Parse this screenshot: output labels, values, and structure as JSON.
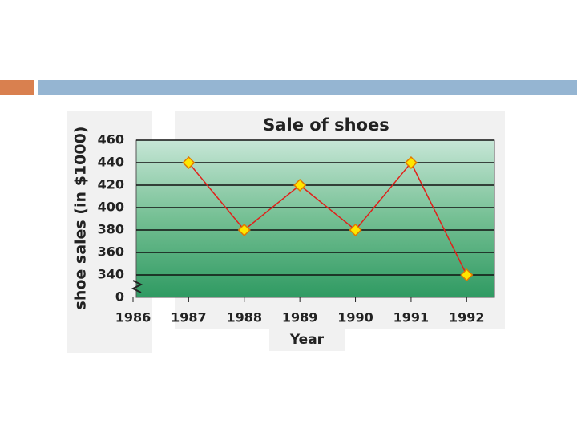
{
  "chart_data": {
    "type": "line",
    "title": "Sale of shoes",
    "x_label": "Year",
    "y_label": "shoe sales (in $1000)",
    "x": [
      1987,
      1988,
      1989,
      1990,
      1991,
      1992
    ],
    "series": [
      {
        "name": "shoe sales",
        "color": "#e0201a",
        "marker_color": "#ffe600",
        "values": [
          440,
          380,
          420,
          380,
          440,
          340
        ]
      }
    ],
    "xlim": [
      1986,
      1992.5
    ],
    "xticks": [
      1986,
      1987,
      1988,
      1989,
      1990,
      1991,
      1992
    ],
    "ylim": [
      320,
      460
    ],
    "yticks": [
      {
        "value": 320,
        "label": "0"
      },
      340,
      360,
      380,
      400,
      420,
      440,
      460
    ],
    "grid": true
  }
}
